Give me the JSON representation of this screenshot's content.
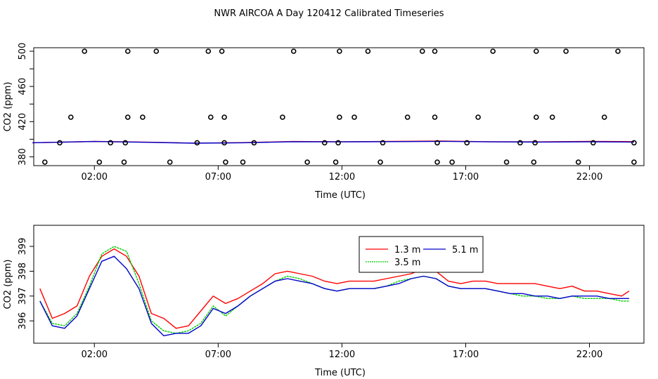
{
  "title": "NWR AIRCOA A  Day 120412  Calibrated Timeseries",
  "chart_data": [
    {
      "type": "scatter",
      "xlabel": "Time (UTC)",
      "ylabel": "CO2 (ppm)",
      "xlim": [
        -0.45,
        24.2
      ],
      "ylim": [
        370,
        504
      ],
      "xticks": [
        {
          "v": 2,
          "label": "02:00"
        },
        {
          "v": 7,
          "label": "07:00"
        },
        {
          "v": 12,
          "label": "12:00"
        },
        {
          "v": 17,
          "label": "17:00"
        },
        {
          "v": 22,
          "label": "22:00"
        }
      ],
      "yticks": [
        {
          "v": 380,
          "label": "380"
        },
        {
          "v": 400,
          "label": ""
        },
        {
          "v": 420,
          "label": "420"
        },
        {
          "v": 440,
          "label": ""
        },
        {
          "v": 460,
          "label": "460"
        },
        {
          "v": 480,
          "label": ""
        },
        {
          "v": 500,
          "label": "500"
        }
      ],
      "points": [
        {
          "x": 1.6,
          "y": 500
        },
        {
          "x": 3.35,
          "y": 500
        },
        {
          "x": 4.5,
          "y": 500
        },
        {
          "x": 6.6,
          "y": 500
        },
        {
          "x": 7.15,
          "y": 500
        },
        {
          "x": 10.05,
          "y": 500
        },
        {
          "x": 11.9,
          "y": 500
        },
        {
          "x": 13.05,
          "y": 500
        },
        {
          "x": 15.25,
          "y": 500
        },
        {
          "x": 15.75,
          "y": 500
        },
        {
          "x": 18.1,
          "y": 500
        },
        {
          "x": 19.85,
          "y": 500
        },
        {
          "x": 21.05,
          "y": 500
        },
        {
          "x": 23.15,
          "y": 500
        },
        {
          "x": 1.05,
          "y": 425
        },
        {
          "x": 3.35,
          "y": 425
        },
        {
          "x": 3.95,
          "y": 425
        },
        {
          "x": 6.7,
          "y": 425
        },
        {
          "x": 7.25,
          "y": 425
        },
        {
          "x": 9.6,
          "y": 425
        },
        {
          "x": 11.9,
          "y": 425
        },
        {
          "x": 12.5,
          "y": 425
        },
        {
          "x": 14.65,
          "y": 425
        },
        {
          "x": 15.75,
          "y": 425
        },
        {
          "x": 17.5,
          "y": 425
        },
        {
          "x": 19.85,
          "y": 425
        },
        {
          "x": 20.5,
          "y": 425
        },
        {
          "x": 22.6,
          "y": 425
        },
        {
          "x": 0.6,
          "y": 396
        },
        {
          "x": 2.65,
          "y": 396
        },
        {
          "x": 3.25,
          "y": 396
        },
        {
          "x": 6.15,
          "y": 396
        },
        {
          "x": 7.25,
          "y": 396
        },
        {
          "x": 8.45,
          "y": 396
        },
        {
          "x": 11.3,
          "y": 396
        },
        {
          "x": 11.85,
          "y": 396
        },
        {
          "x": 13.65,
          "y": 396
        },
        {
          "x": 15.85,
          "y": 396
        },
        {
          "x": 17.05,
          "y": 396
        },
        {
          "x": 19.2,
          "y": 396
        },
        {
          "x": 19.8,
          "y": 396
        },
        {
          "x": 22.15,
          "y": 396
        },
        {
          "x": 23.8,
          "y": 396
        },
        {
          "x": 0.0,
          "y": 374
        },
        {
          "x": 2.2,
          "y": 374
        },
        {
          "x": 3.2,
          "y": 374
        },
        {
          "x": 5.05,
          "y": 374
        },
        {
          "x": 7.3,
          "y": 374
        },
        {
          "x": 8.0,
          "y": 374
        },
        {
          "x": 10.6,
          "y": 374
        },
        {
          "x": 11.75,
          "y": 374
        },
        {
          "x": 13.55,
          "y": 374
        },
        {
          "x": 15.85,
          "y": 374
        },
        {
          "x": 16.45,
          "y": 374
        },
        {
          "x": 18.65,
          "y": 374
        },
        {
          "x": 19.75,
          "y": 374
        },
        {
          "x": 21.55,
          "y": 374
        },
        {
          "x": 23.8,
          "y": 374
        }
      ],
      "lines": [
        {
          "name": "1.3 m",
          "color": "#ff0000",
          "x": [
            -0.5,
            2.0,
            4.0,
            6.0,
            8.0,
            10.0,
            12.0,
            14.0,
            16.0,
            18.0,
            20.0,
            22.0,
            23.8
          ],
          "y": [
            396.0,
            397.5,
            396.8,
            395.6,
            396.2,
            397.4,
            397.2,
            397.5,
            397.9,
            397.2,
            397.0,
            397.5,
            397.3
          ]
        },
        {
          "name": "5.1 m",
          "color": "#0000cc",
          "x": [
            -0.5,
            2.0,
            4.0,
            6.0,
            8.0,
            10.0,
            12.0,
            14.0,
            16.0,
            18.0,
            20.0,
            22.0,
            23.8
          ],
          "y": [
            396.0,
            397.4,
            396.6,
            395.5,
            396.0,
            397.2,
            397.0,
            397.3,
            397.6,
            397.0,
            396.8,
            397.1,
            396.8
          ]
        }
      ]
    },
    {
      "type": "line",
      "xlabel": "Time (UTC)",
      "ylabel": "CO2 (ppm)",
      "xlim": [
        -0.45,
        24.2
      ],
      "ylim": [
        395.1,
        399.85
      ],
      "xticks": [
        {
          "v": 2,
          "label": "02:00"
        },
        {
          "v": 7,
          "label": "07:00"
        },
        {
          "v": 12,
          "label": "12:00"
        },
        {
          "v": 17,
          "label": "17:00"
        },
        {
          "v": 22,
          "label": "22:00"
        }
      ],
      "yticks": [
        {
          "v": 396,
          "label": "396"
        },
        {
          "v": 397,
          "label": "397"
        },
        {
          "v": 398,
          "label": "398"
        },
        {
          "v": 399,
          "label": "399"
        }
      ],
      "x": [
        -0.2,
        0.3,
        0.8,
        1.3,
        1.8,
        2.3,
        2.8,
        3.3,
        3.8,
        4.3,
        4.8,
        5.3,
        5.8,
        6.3,
        6.8,
        7.3,
        7.8,
        8.3,
        8.8,
        9.3,
        9.8,
        10.3,
        10.8,
        11.3,
        11.8,
        12.3,
        12.8,
        13.3,
        13.8,
        14.3,
        14.8,
        15.3,
        15.8,
        16.3,
        16.8,
        17.3,
        17.8,
        18.3,
        18.8,
        19.3,
        19.8,
        20.3,
        20.8,
        21.3,
        21.8,
        22.3,
        22.8,
        23.3,
        23.6
      ],
      "series": [
        {
          "name": "1.3 m",
          "color": "#ff0000",
          "values": [
            397.3,
            396.1,
            396.3,
            396.6,
            397.8,
            398.6,
            398.9,
            398.6,
            397.8,
            396.3,
            396.1,
            395.7,
            395.8,
            396.4,
            397.0,
            396.7,
            396.9,
            397.2,
            397.5,
            397.9,
            398.0,
            397.9,
            397.8,
            397.6,
            397.5,
            397.6,
            397.6,
            397.6,
            397.7,
            397.8,
            397.9,
            398.1,
            398.0,
            397.6,
            397.5,
            397.6,
            397.6,
            397.5,
            397.5,
            397.5,
            397.5,
            397.4,
            397.3,
            397.4,
            397.2,
            397.2,
            397.1,
            397.0,
            397.2
          ]
        },
        {
          "name": "3.5 m",
          "color": "#00cc00",
          "values": [
            396.8,
            395.9,
            395.8,
            396.3,
            397.4,
            398.7,
            399.0,
            398.8,
            397.5,
            396.0,
            395.6,
            395.5,
            395.6,
            395.9,
            396.6,
            396.2,
            396.6,
            397.0,
            397.3,
            397.6,
            397.8,
            397.7,
            397.5,
            397.3,
            397.2,
            397.3,
            397.3,
            397.3,
            397.4,
            397.6,
            397.7,
            397.8,
            397.7,
            397.4,
            397.3,
            397.3,
            397.3,
            397.2,
            397.1,
            397.0,
            397.0,
            396.9,
            396.9,
            397.0,
            396.9,
            396.9,
            396.9,
            396.8,
            396.8
          ]
        },
        {
          "name": "5.1 m",
          "color": "#0000cc",
          "values": [
            396.8,
            395.8,
            395.7,
            396.2,
            397.3,
            398.4,
            398.6,
            398.1,
            397.3,
            395.9,
            395.4,
            395.5,
            395.5,
            395.8,
            396.5,
            396.3,
            396.6,
            397.0,
            397.3,
            397.6,
            397.7,
            397.6,
            397.5,
            397.3,
            397.2,
            397.3,
            397.3,
            397.3,
            397.4,
            397.5,
            397.7,
            397.8,
            397.7,
            397.4,
            397.3,
            397.3,
            397.3,
            397.2,
            397.1,
            397.1,
            397.0,
            397.0,
            396.9,
            397.0,
            397.0,
            397.0,
            396.9,
            396.9,
            396.9
          ]
        }
      ],
      "legend": {
        "placement": "top-center",
        "entries": [
          {
            "label": "1.3 m",
            "color": "#ff0000"
          },
          {
            "label": "5.1 m",
            "color": "#0000cc"
          },
          {
            "label": "3.5 m",
            "color": "#00cc00"
          }
        ]
      }
    }
  ]
}
